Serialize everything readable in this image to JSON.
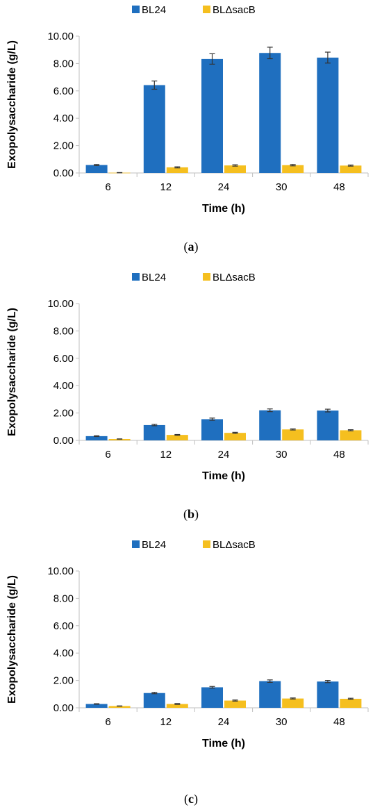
{
  "colors": {
    "series_1": "#1f6fbf",
    "series_2": "#f5bf1f"
  },
  "chart_data": [
    {
      "type": "bar",
      "caption": "a",
      "categories": [
        "6",
        "12",
        "24",
        "30",
        "48"
      ],
      "series": [
        {
          "name": "BL24",
          "values": [
            0.58,
            6.42,
            8.33,
            8.77,
            8.43
          ],
          "errors": [
            0.04,
            0.3,
            0.38,
            0.42,
            0.4
          ]
        },
        {
          "name": "BLΔsacB",
          "values": [
            0.02,
            0.41,
            0.55,
            0.57,
            0.54
          ],
          "errors": [
            0.01,
            0.04,
            0.05,
            0.05,
            0.04
          ]
        }
      ],
      "xlabel": "Time (h)",
      "ylabel": "Exopolysaccharide (g/L)",
      "ylim": [
        0,
        10
      ],
      "yticks": [
        "0.00",
        "2.00",
        "4.00",
        "6.00",
        "8.00",
        "10.00"
      ],
      "legend": "top-center",
      "grid": false
    },
    {
      "type": "bar",
      "caption": "b",
      "categories": [
        "6",
        "12",
        "24",
        "30",
        "48"
      ],
      "series": [
        {
          "name": "BL24",
          "values": [
            0.31,
            1.12,
            1.55,
            2.2,
            2.18
          ],
          "errors": [
            0.03,
            0.05,
            0.08,
            0.1,
            0.1
          ]
        },
        {
          "name": "BLΔsacB",
          "values": [
            0.1,
            0.4,
            0.55,
            0.8,
            0.74
          ],
          "errors": [
            0.01,
            0.03,
            0.04,
            0.04,
            0.04
          ]
        }
      ],
      "xlabel": "Time (h)",
      "ylabel": "Exopolysaccharide (g/L)",
      "ylim": [
        0,
        10
      ],
      "yticks": [
        "0.00",
        "2.00",
        "4.00",
        "6.00",
        "8.00",
        "10.00"
      ],
      "legend": "top-center",
      "grid": false
    },
    {
      "type": "bar",
      "caption": "c",
      "categories": [
        "6",
        "12",
        "24",
        "30",
        "48"
      ],
      "series": [
        {
          "name": "BL24",
          "values": [
            0.28,
            1.08,
            1.5,
            1.95,
            1.92
          ],
          "errors": [
            0.02,
            0.05,
            0.06,
            0.09,
            0.08
          ]
        },
        {
          "name": "BLΔsacB",
          "values": [
            0.13,
            0.28,
            0.53,
            0.68,
            0.66
          ],
          "errors": [
            0.01,
            0.03,
            0.04,
            0.04,
            0.04
          ]
        }
      ],
      "xlabel": "Time (h)",
      "ylabel": "Exopolysaccharide (g/L)",
      "ylim": [
        0,
        10
      ],
      "yticks": [
        "0.00",
        "2.00",
        "4.00",
        "6.00",
        "8.00",
        "10.00"
      ],
      "legend": "top-center",
      "grid": false
    }
  ]
}
